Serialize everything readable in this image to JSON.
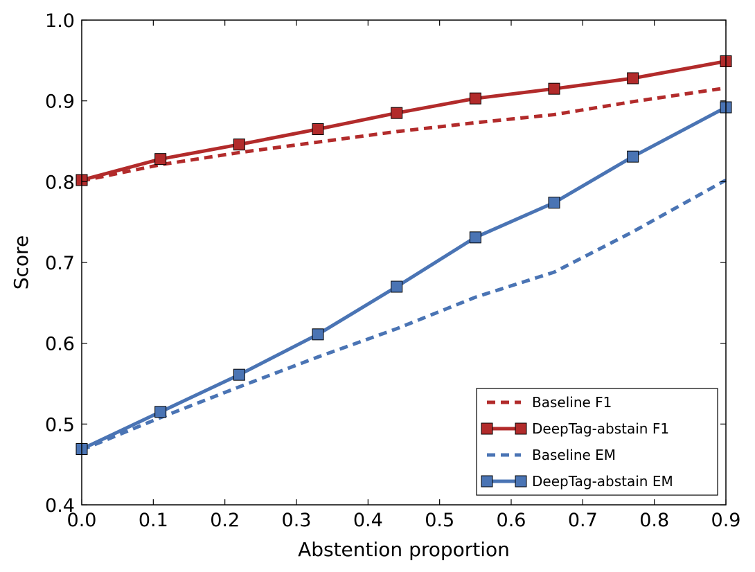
{
  "chart_data": {
    "type": "line",
    "xlabel": "Abstention proportion",
    "ylabel": "Score",
    "xlim": [
      0.0,
      0.9
    ],
    "ylim": [
      0.4,
      1.0
    ],
    "xticks": [
      "0.0",
      "0.1",
      "0.2",
      "0.3",
      "0.4",
      "0.5",
      "0.6",
      "0.7",
      "0.8",
      "0.9"
    ],
    "yticks": [
      "0.4",
      "0.5",
      "0.6",
      "0.7",
      "0.8",
      "0.9",
      "1.0"
    ],
    "grid": false,
    "legend_position": "bottom-right",
    "series": [
      {
        "name": "Baseline F1",
        "color": "#b22b2b",
        "style": "dashed",
        "marker": "none",
        "x": [
          0.0,
          0.11,
          0.22,
          0.33,
          0.44,
          0.55,
          0.66,
          0.77,
          0.9
        ],
        "y": [
          0.801,
          0.821,
          0.836,
          0.849,
          0.862,
          0.873,
          0.883,
          0.899,
          0.916
        ]
      },
      {
        "name": "DeepTag-abstain F1",
        "color": "#b22b2b",
        "style": "solid",
        "marker": "square",
        "x": [
          0.0,
          0.11,
          0.22,
          0.33,
          0.44,
          0.55,
          0.66,
          0.77,
          0.9
        ],
        "y": [
          0.802,
          0.828,
          0.846,
          0.865,
          0.885,
          0.903,
          0.915,
          0.928,
          0.949
        ]
      },
      {
        "name": "Baseline EM",
        "color": "#4a74b4",
        "style": "dashed",
        "marker": "none",
        "x": [
          0.0,
          0.11,
          0.22,
          0.33,
          0.44,
          0.55,
          0.66,
          0.77,
          0.9
        ],
        "y": [
          0.468,
          0.508,
          0.546,
          0.583,
          0.618,
          0.657,
          0.688,
          0.738,
          0.802
        ]
      },
      {
        "name": "DeepTag-abstain EM",
        "color": "#4a74b4",
        "style": "solid",
        "marker": "square",
        "x": [
          0.0,
          0.11,
          0.22,
          0.33,
          0.44,
          0.55,
          0.66,
          0.77,
          0.9
        ],
        "y": [
          0.469,
          0.515,
          0.561,
          0.611,
          0.67,
          0.731,
          0.774,
          0.831,
          0.892
        ]
      }
    ]
  }
}
